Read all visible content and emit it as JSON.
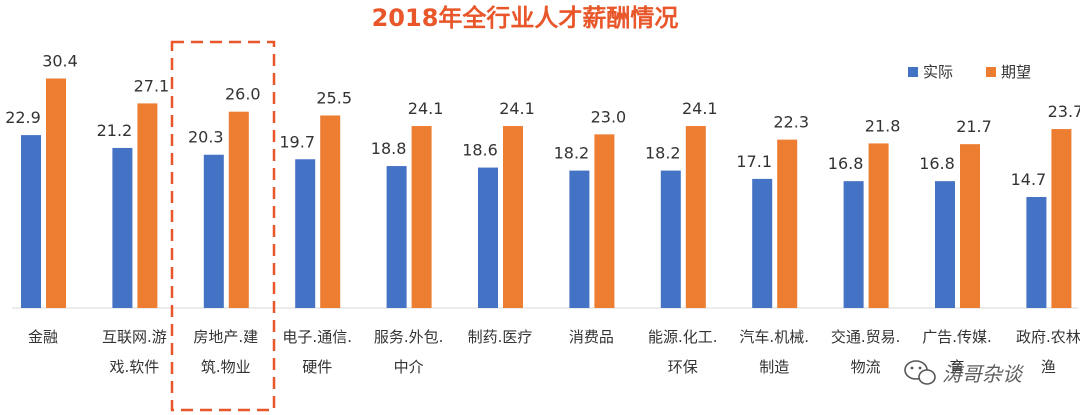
{
  "chart_data": {
    "type": "bar",
    "title": "2018年全行业人才薪酬情况",
    "categories": [
      [
        "金融"
      ],
      [
        "互联网.游",
        "戏.软件"
      ],
      [
        "房地产.建",
        "筑.物业"
      ],
      [
        "电子.通信.",
        "硬件"
      ],
      [
        "服务.外包.",
        "中介"
      ],
      [
        "制药.医疗"
      ],
      [
        "消费品"
      ],
      [
        "能源.化工.",
        "环保"
      ],
      [
        "汽车.机械.",
        "制造"
      ],
      [
        "交通.贸易.",
        "物流"
      ],
      [
        "广告.传媒.",
        "育"
      ],
      [
        "政府.农林",
        "渔"
      ]
    ],
    "series": [
      {
        "name": "实际",
        "color": "#4472C4",
        "values": [
          22.9,
          21.2,
          20.3,
          19.7,
          18.8,
          18.6,
          18.2,
          18.2,
          17.1,
          16.8,
          16.8,
          14.7
        ]
      },
      {
        "name": "期望",
        "color": "#ED7D31",
        "values": [
          30.4,
          27.1,
          26.0,
          25.5,
          24.1,
          24.1,
          23.0,
          24.1,
          22.3,
          21.8,
          21.7,
          23.7
        ]
      }
    ],
    "value_labels": {
      "实际": [
        "22.9",
        "21.2",
        "20.3",
        "19.7",
        "18.8",
        "18.6",
        "18.2",
        "18.2",
        "17.1",
        "16.8",
        "16.8",
        "14.7"
      ],
      "期望": [
        "30.4",
        "27.1",
        "26.0",
        "25.5",
        "24.1",
        "24.1",
        "23.0",
        "24.1",
        "22.3",
        "21.8",
        "21.7",
        "23.7"
      ]
    },
    "ylim": [
      0,
      32
    ],
    "grid": false,
    "legend_position": "top-right",
    "highlight_category_index": 2,
    "title_color": "#E8562A",
    "highlight_color": "#E8562A"
  },
  "watermark": {
    "text": "涛哥杂谈",
    "icon": "wechat-icon"
  }
}
